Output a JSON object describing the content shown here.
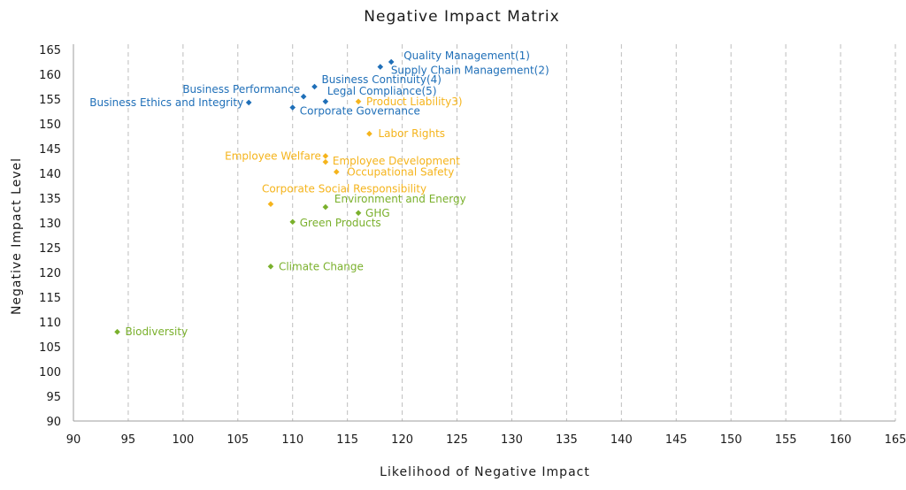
{
  "chart_data": {
    "type": "scatter",
    "title": "Negative Impact Matrix",
    "xlabel": "Likelihood of Negative Impact",
    "ylabel": "Negative Impact Level",
    "xlim": [
      90,
      165
    ],
    "ylim": [
      90,
      165
    ],
    "x_ticks": [
      "90",
      "95",
      "100",
      "105",
      "110",
      "115",
      "120",
      "125",
      "130",
      "135",
      "140",
      "145",
      "150",
      "155",
      "160",
      "165"
    ],
    "y_ticks": [
      "90",
      "95",
      "100",
      "105",
      "110",
      "115",
      "120",
      "125",
      "130",
      "135",
      "140",
      "145",
      "150",
      "155",
      "160",
      "165"
    ],
    "grid": "vertical dashed",
    "legend": "none",
    "colors": {
      "governance": "#1f6fb8",
      "social": "#f5b41c",
      "environment": "#7ab02c"
    },
    "points": [
      {
        "label": "Quality Management(1)",
        "x": 119,
        "y": 162.5,
        "group": "governance",
        "anchor": "start",
        "dx": 14,
        "dy": -3
      },
      {
        "label": "Supply Chain Management(2)",
        "x": 118,
        "y": 161.5,
        "group": "governance",
        "anchor": "start",
        "dx": 12,
        "dy": 8
      },
      {
        "label": "Business Continuity(4)",
        "x": 112,
        "y": 157.5,
        "group": "governance",
        "anchor": "start",
        "dx": 8,
        "dy": -4
      },
      {
        "label": "Business Performance",
        "x": 111,
        "y": 155.5,
        "group": "governance",
        "anchor": "end",
        "dx": -4,
        "dy": -4
      },
      {
        "label": "Legal Compliance(5)",
        "x": 113,
        "y": 154.5,
        "group": "governance",
        "anchor": "start",
        "dx": 2,
        "dy": -8
      },
      {
        "label": "Business Ethics and Integrity",
        "x": 106,
        "y": 154.3,
        "group": "governance",
        "anchor": "end",
        "dx": -6,
        "dy": 4
      },
      {
        "label": "Corporate Governance",
        "x": 110,
        "y": 153.3,
        "group": "governance",
        "anchor": "start",
        "dx": 8,
        "dy": 8
      },
      {
        "label": "Product Liability3)",
        "x": 116,
        "y": 154.5,
        "group": "social",
        "anchor": "start",
        "dx": 9,
        "dy": 4
      },
      {
        "label": "Labor Rights",
        "x": 117,
        "y": 148,
        "group": "social",
        "anchor": "start",
        "dx": 10,
        "dy": 4
      },
      {
        "label": "Employee Welfare",
        "x": 113,
        "y": 143.5,
        "group": "social",
        "anchor": "end",
        "dx": -5,
        "dy": 4
      },
      {
        "label": "Employee Development",
        "x": 113,
        "y": 142.3,
        "group": "social",
        "anchor": "start",
        "dx": 8,
        "dy": 3
      },
      {
        "label": "Occupational Safety",
        "x": 114,
        "y": 140.3,
        "group": "social",
        "anchor": "start",
        "dx": 12,
        "dy": 4
      },
      {
        "label": "Corporate Social Responsibility",
        "x": 108,
        "y": 133.8,
        "group": "social",
        "anchor": "start",
        "dx": -10,
        "dy": -13
      },
      {
        "label": "Environment and Energy",
        "x": 113,
        "y": 133.2,
        "group": "environment",
        "anchor": "start",
        "dx": 10,
        "dy": -5
      },
      {
        "label": "GHG",
        "x": 116,
        "y": 132,
        "group": "environment",
        "anchor": "start",
        "dx": 8,
        "dy": 4
      },
      {
        "label": "Green Products",
        "x": 110,
        "y": 130.2,
        "group": "environment",
        "anchor": "start",
        "dx": 8,
        "dy": 5
      },
      {
        "label": "Climate Change",
        "x": 108,
        "y": 121.2,
        "group": "environment",
        "anchor": "start",
        "dx": 9,
        "dy": 4
      },
      {
        "label": "Biodiversity",
        "x": 94,
        "y": 108,
        "group": "environment",
        "anchor": "start",
        "dx": 9,
        "dy": 4
      }
    ]
  }
}
